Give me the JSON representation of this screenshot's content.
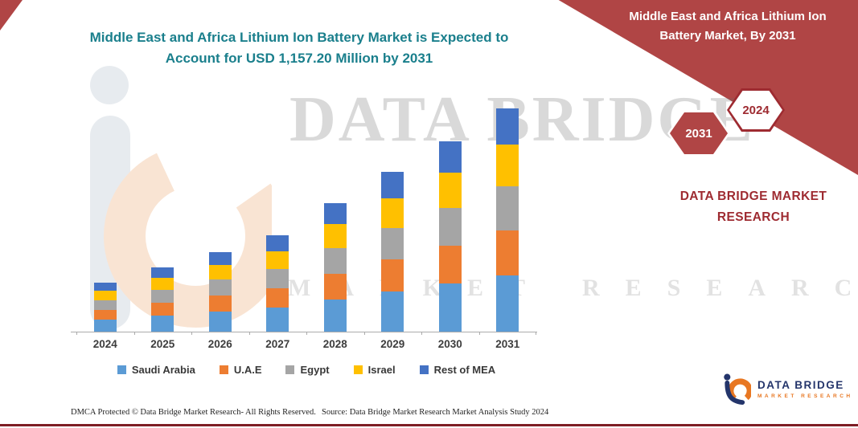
{
  "title": {
    "line1": "Middle East and Africa Lithium Ion Battery Market is Expected to",
    "line2": "Account for USD 1,157.20 Million by 2031",
    "color": "#1a7f8c"
  },
  "banner": {
    "color": "#b04545",
    "dark_text_color": "#9e2b31",
    "title_line1": "Middle East and Africa Lithium Ion",
    "title_line2": "Battery Market, By 2031",
    "hexagons": [
      {
        "label": "2031",
        "style": "red-fill-white-border"
      },
      {
        "label": "2024",
        "style": "white-fill-red-border"
      }
    ],
    "brand_line1": "DATA BRIDGE MARKET",
    "brand_line2": "RESEARCH"
  },
  "watermark": {
    "title": "DATA BRIDGE",
    "subtitle": "MARKET RESEARCH"
  },
  "chart_data": {
    "type": "bar",
    "stacked": true,
    "title": "Middle East and Africa Lithium Ion Battery Market is Expected to Account for USD 1,157.20 Million by 2031",
    "unit": "USD Million",
    "xlabel": "",
    "ylabel": "",
    "ylim": [
      0,
      1200
    ],
    "grid": false,
    "legend_position": "bottom",
    "categories": [
      "2024",
      "2025",
      "2026",
      "2027",
      "2028",
      "2029",
      "2030",
      "2031"
    ],
    "series": [
      {
        "name": "Saudi Arabia",
        "color": "#5B9BD5",
        "values": [
          63,
          85,
          104,
          126,
          166,
          209,
          249,
          292
        ]
      },
      {
        "name": "U.A.E",
        "color": "#ED7D31",
        "values": [
          51,
          67,
          83,
          100,
          131,
          165,
          197,
          232
        ]
      },
      {
        "name": "Egypt",
        "color": "#A5A5A5",
        "values": [
          50,
          66,
          82,
          99,
          131,
          164,
          196,
          230
        ]
      },
      {
        "name": "Israel",
        "color": "#FFC000",
        "values": [
          48,
          63,
          76,
          93,
          124,
          155,
          184,
          216
        ]
      },
      {
        "name": "Rest of MEA",
        "color": "#4472C4",
        "values": [
          42,
          56,
          67,
          82,
          106,
          135,
          160,
          187.2
        ]
      }
    ],
    "totals": [
      254,
      337,
      412,
      500,
      658,
      828,
      986,
      1157.2
    ]
  },
  "footer": {
    "dmca": "DMCA Protected © Data Bridge Market Research-  All Rights Reserved.",
    "source": "Source: Data Bridge Market Research  Market Analysis Study 2024"
  },
  "logo": {
    "name": "DATA BRIDGE",
    "tagline": "MARKET RESEARCH"
  }
}
